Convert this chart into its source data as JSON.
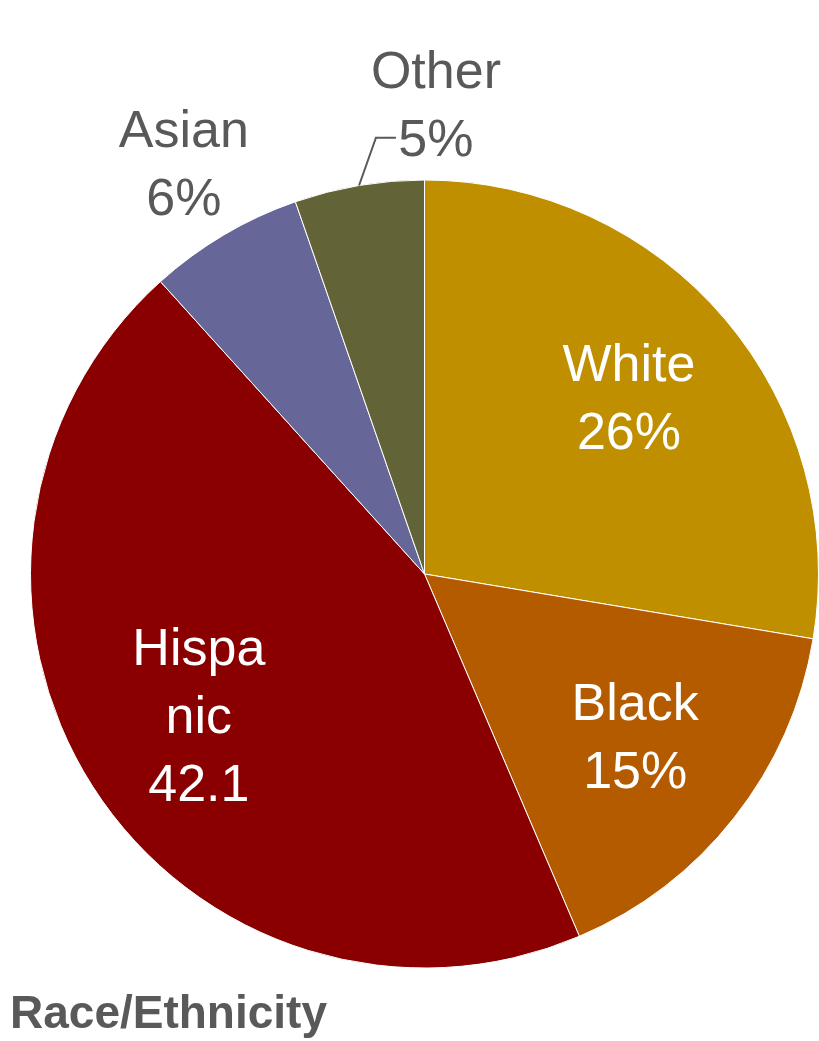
{
  "chart_data": {
    "type": "pie",
    "title": "Race/Ethnicity",
    "categories": [
      "White",
      "Black",
      "Hispanic",
      "Asian",
      "Other"
    ],
    "values": [
      26,
      15,
      42.1,
      6,
      5
    ],
    "value_labels": [
      "26%",
      "15%",
      "42.1",
      "6%",
      "5%"
    ],
    "colors": [
      "#bf8f00",
      "#b45b00",
      "#8a0000",
      "#666699",
      "#636338"
    ],
    "legend": false
  }
}
